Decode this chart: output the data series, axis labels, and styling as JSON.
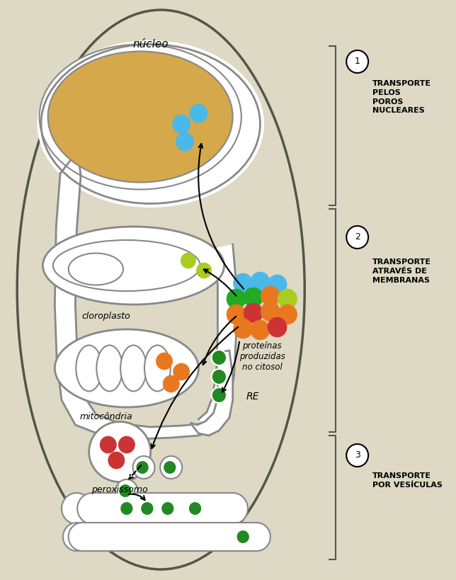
{
  "bg_color": "#ddd9c4",
  "cell_fill": "#ddd9c4",
  "cell_edge": "#555544",
  "white_fill": "#ffffff",
  "gray_edge": "#888888",
  "nucleus_fill": "#d4a84b",
  "blue_color": "#4ab8e8",
  "green_color": "#22aa22",
  "orange_color": "#e87820",
  "red_color": "#cc3333",
  "yellow_green_color": "#aacc22",
  "dark_green_color": "#228822",
  "dark_orange": "#cc6600",
  "nucleus_label": "núcleo",
  "chloroplast_label": "cloroplasto",
  "mitochondria_label": "mitocôndria",
  "peroxisome_label": "peroxissomo",
  "re_label": "RE",
  "proteins_label": [
    "proteínas",
    "produzidas",
    "no citosol"
  ],
  "text1_lines": [
    "TRANSPORTE",
    "PELOS",
    "POROS",
    "NUCLEARES"
  ],
  "text2_lines": [
    "TRANSPORTE",
    "ATRAVÉS DE",
    "MEMBRANAS"
  ],
  "text3_lines": [
    "TRANSPORTE",
    "POR VESÍCULAS"
  ]
}
